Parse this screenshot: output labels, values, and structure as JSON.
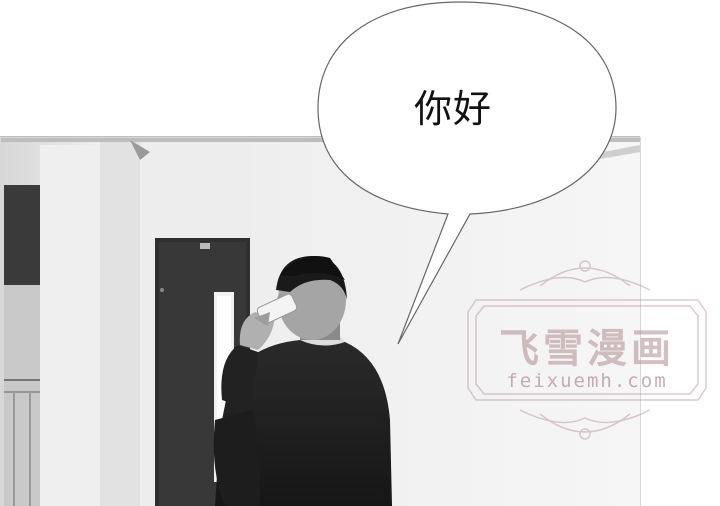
{
  "speech_bubble": {
    "text": "你好"
  },
  "watermark": {
    "brand_cn": "飞雪漫画",
    "url": "feixuemh.com",
    "color": "#b48c92"
  },
  "scene": {
    "palette": [
      "#ffffff",
      "#d9d9d9",
      "#3a3a3a",
      "#1b1b1b"
    ]
  }
}
